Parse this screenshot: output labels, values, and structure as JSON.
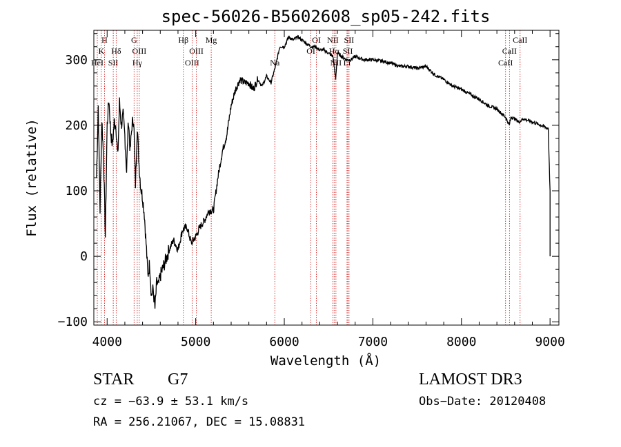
{
  "chart_data": {
    "type": "line",
    "title": "spec-56026-B5602608_sp05-242.fits",
    "xlabel": "Wavelength (Å)",
    "ylabel": "Flux (relative)",
    "xlim": [
      3850,
      9100
    ],
    "ylim": [
      -105,
      345
    ],
    "xticks": [
      4000,
      5000,
      6000,
      7000,
      8000,
      9000
    ],
    "yticks": [
      -100,
      0,
      100,
      200,
      300
    ],
    "xtick_labels": [
      "4000",
      "5000",
      "6000",
      "7000",
      "8000",
      "9000"
    ],
    "ytick_labels": [
      "−100",
      "0",
      "100",
      "200",
      "300"
    ],
    "series": [
      {
        "name": "flux",
        "x": [
          3880,
          3900,
          3920,
          3940,
          3960,
          3980,
          4000,
          4020,
          4040,
          4060,
          4080,
          4100,
          4120,
          4140,
          4160,
          4180,
          4200,
          4220,
          4240,
          4260,
          4280,
          4300,
          4320,
          4340,
          4360,
          4380,
          4400,
          4420,
          4440,
          4460,
          4480,
          4500,
          4520,
          4540,
          4560,
          4580,
          4600,
          4650,
          4700,
          4750,
          4800,
          4850,
          4900,
          4950,
          5000,
          5050,
          5100,
          5150,
          5200,
          5250,
          5300,
          5350,
          5400,
          5450,
          5500,
          5550,
          5600,
          5650,
          5700,
          5750,
          5800,
          5850,
          5900,
          5950,
          6000,
          6050,
          6100,
          6150,
          6200,
          6250,
          6300,
          6350,
          6400,
          6450,
          6500,
          6550,
          6580,
          6600,
          6650,
          6700,
          6750,
          6800,
          6900,
          7000,
          7100,
          7200,
          7300,
          7400,
          7500,
          7600,
          7700,
          7800,
          7900,
          8000,
          8100,
          8200,
          8300,
          8400,
          8500,
          8540,
          8560,
          8600,
          8650,
          8700,
          8800,
          8900,
          8980,
          9000
        ],
        "y": [
          120,
          230,
          70,
          210,
          150,
          30,
          200,
          240,
          190,
          170,
          205,
          200,
          150,
          235,
          200,
          215,
          185,
          130,
          210,
          160,
          200,
          210,
          110,
          200,
          140,
          105,
          90,
          65,
          20,
          -30,
          -10,
          -60,
          -50,
          -80,
          -40,
          -45,
          -30,
          -10,
          10,
          25,
          10,
          40,
          45,
          20,
          30,
          45,
          55,
          70,
          70,
          120,
          160,
          185,
          230,
          255,
          270,
          265,
          265,
          255,
          270,
          260,
          275,
          265,
          290,
          320,
          320,
          335,
          330,
          335,
          330,
          325,
          320,
          320,
          315,
          315,
          310,
          305,
          270,
          310,
          305,
          300,
          300,
          305,
          300,
          300,
          298,
          295,
          290,
          290,
          287,
          290,
          277,
          270,
          260,
          255,
          247,
          240,
          230,
          225,
          212,
          200,
          213,
          210,
          205,
          210,
          205,
          200,
          195,
          100
        ]
      }
    ],
    "line_labels": [
      {
        "text": "H",
        "row": 1,
        "x": 3970
      },
      {
        "text": "K",
        "row": 2,
        "x": 3934
      },
      {
        "text": "Hδ",
        "row": 2,
        "x": 4102
      },
      {
        "text": "G",
        "row": 1,
        "x": 4304
      },
      {
        "text": "OIII",
        "row": 2,
        "x": 4363
      },
      {
        "text": "Hγ",
        "row": 3,
        "x": 4340
      },
      {
        "text": "HeI",
        "row": 3,
        "x": 3889
      },
      {
        "text": "SII",
        "row": 3,
        "x": 4069
      },
      {
        "text": "Hβ",
        "row": 1,
        "x": 4861
      },
      {
        "text": "OIII",
        "row": 2,
        "x": 5007
      },
      {
        "text": "OIII",
        "row": 3,
        "x": 4959
      },
      {
        "text": "Mg",
        "row": 1,
        "x": 5175
      },
      {
        "text": "Na",
        "row": 3,
        "x": 5893
      },
      {
        "text": "OI",
        "row": 1,
        "x": 6363
      },
      {
        "text": "OI",
        "row": 2,
        "x": 6300
      },
      {
        "text": "NII",
        "row": 1,
        "x": 6548
      },
      {
        "text": "SII",
        "row": 1,
        "x": 6731
      },
      {
        "text": "Hα",
        "row": 2,
        "x": 6563
      },
      {
        "text": "SII",
        "row": 2,
        "x": 6717
      },
      {
        "text": "NII",
        "row": 3,
        "x": 6583
      },
      {
        "text": "Li",
        "row": 3,
        "x": 6708
      },
      {
        "text": "CaII",
        "row": 1,
        "x": 8662
      },
      {
        "text": "CaII",
        "row": 2,
        "x": 8542
      },
      {
        "text": "CaII",
        "row": 3,
        "x": 8498
      }
    ],
    "line_markers": [
      3889,
      3934,
      3970,
      4069,
      4102,
      4304,
      4340,
      4363,
      4861,
      4959,
      5007,
      5175,
      5893,
      6300,
      6363,
      6548,
      6563,
      6583,
      6708,
      6717,
      6731,
      8498,
      8542,
      8662
    ]
  },
  "footer": {
    "object_class": "STAR",
    "subclass": "G7",
    "survey": "LAMOST DR3",
    "redshift": "cz = −63.9 ± 53.1 km/s",
    "obs_date": "Obs−Date: 20120408",
    "coords": "RA = 256.21067, DEC =  15.08831"
  },
  "colors": {
    "line": "#000000",
    "marker": "#cc0000",
    "axis": "#000000"
  }
}
